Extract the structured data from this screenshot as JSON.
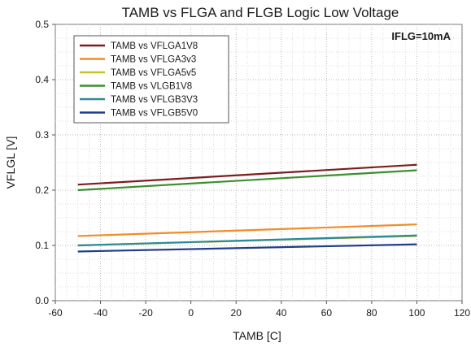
{
  "chart_data": {
    "type": "line",
    "title": "TAMB vs FLGA and FLGB Logic Low Voltage",
    "xlabel": "TAMB [C]",
    "ylabel": "VFLGL [V]",
    "xlim": [
      -60,
      120
    ],
    "ylim": [
      0.0,
      0.5
    ],
    "x_ticks": [
      -60,
      -40,
      -20,
      0,
      20,
      40,
      60,
      80,
      100,
      120
    ],
    "x_tick_labels": [
      "-60",
      "-40",
      "-20",
      "0",
      "20",
      "40",
      "60",
      "80",
      "100",
      "120"
    ],
    "y_ticks": [
      0.0,
      0.1,
      0.2,
      0.3,
      0.4,
      0.5
    ],
    "y_tick_labels": [
      "0.0",
      "0.1",
      "0.2",
      "0.3",
      "0.4",
      "0.5"
    ],
    "grid": true,
    "legend_position": "top-left",
    "annotation": "IFLG=10mA",
    "series": [
      {
        "name": "TAMB vs VFLGA1V8",
        "color": "#7b1e1e",
        "x": [
          -50,
          100
        ],
        "y": [
          0.21,
          0.246
        ]
      },
      {
        "name": "TAMB vs VFLGA3v3",
        "color": "#f28c28",
        "x": [
          -50,
          100
        ],
        "y": [
          0.117,
          0.138
        ]
      },
      {
        "name": "TAMB vs VFLGA5v5",
        "color": "#c9c227",
        "x": [
          -50,
          100
        ],
        "y": [
          0.1,
          0.117
        ]
      },
      {
        "name": "TAMB vs VLGB1V8",
        "color": "#3b8f2e",
        "x": [
          -50,
          100
        ],
        "y": [
          0.2,
          0.236
        ]
      },
      {
        "name": "TAMB vs VFLGB3V3",
        "color": "#2a8a9a",
        "x": [
          -50,
          100
        ],
        "y": [
          0.1,
          0.118
        ]
      },
      {
        "name": "TAMB vs VFLGB5V0",
        "color": "#1f3d8a",
        "x": [
          -50,
          100
        ],
        "y": [
          0.089,
          0.102
        ]
      }
    ]
  }
}
